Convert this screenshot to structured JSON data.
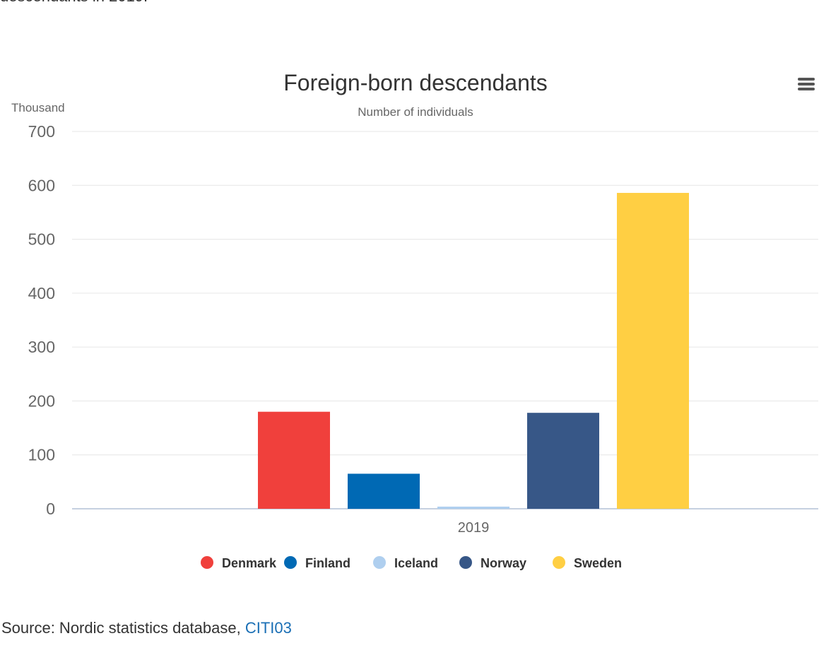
{
  "header": {
    "cut_text": "descendants in 2019."
  },
  "menu": {
    "icon": "hamburger-menu-icon"
  },
  "source": {
    "prefix": "Source: Nordic statistics database, ",
    "link_label": "CITI03"
  },
  "chart_data": {
    "type": "bar",
    "title": "Foreign-born descendants",
    "subtitle": "Number of individuals",
    "ylabel": "Thousand",
    "xlabel": "",
    "categories": [
      "2019"
    ],
    "ylim": [
      0,
      700
    ],
    "yticks": [
      "0",
      "100",
      "200",
      "300",
      "400",
      "500",
      "600",
      "700"
    ],
    "grid": true,
    "legend_position": "bottom-center",
    "series": [
      {
        "name": "Denmark",
        "values": [
          180
        ],
        "color": "#f0403c"
      },
      {
        "name": "Finland",
        "values": [
          65
        ],
        "color": "#0069b4"
      },
      {
        "name": "Iceland",
        "values": [
          4
        ],
        "color": "#afcfef"
      },
      {
        "name": "Norway",
        "values": [
          178
        ],
        "color": "#375787"
      },
      {
        "name": "Sweden",
        "values": [
          586
        ],
        "color": "#ffcf43"
      }
    ]
  }
}
